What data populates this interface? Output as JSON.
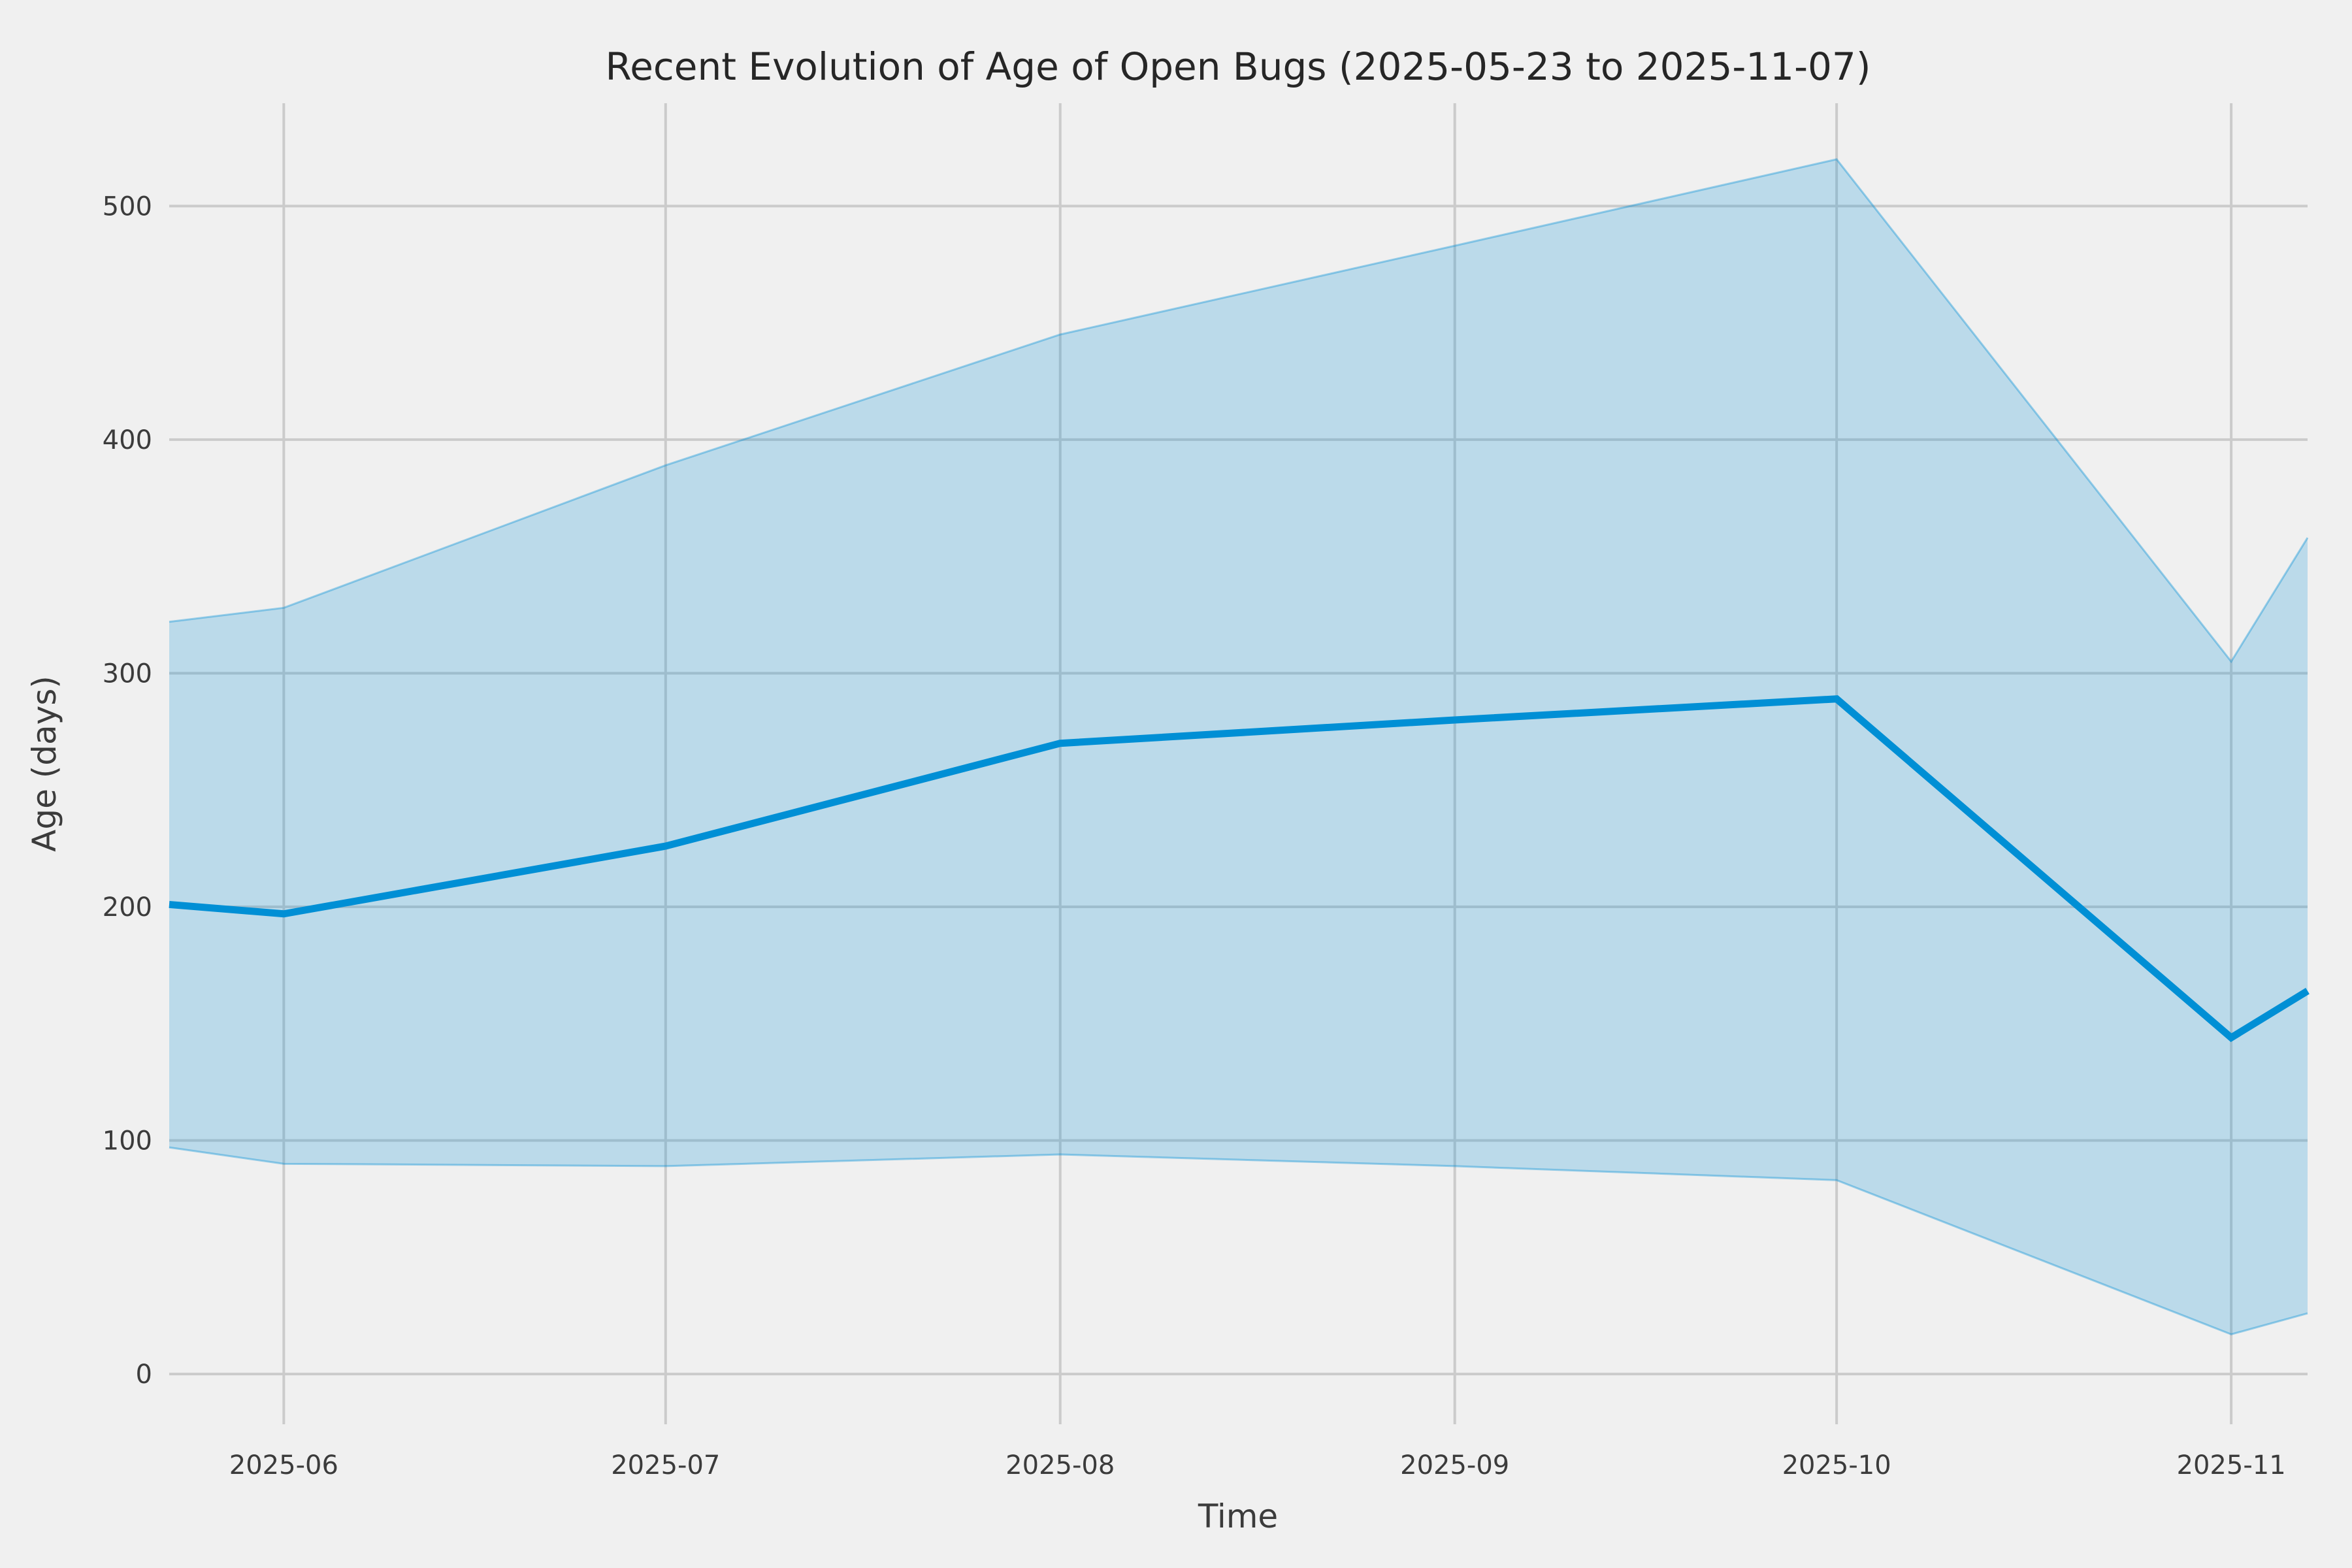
{
  "chart_data": {
    "type": "line",
    "title": "Recent Evolution of Age of Open Bugs (2025-05-23 to 2025-11-07)",
    "xlabel": "Time",
    "ylabel": "Age (days)",
    "x_dates": [
      "2025-05-23",
      "2025-06-01",
      "2025-07-01",
      "2025-08-01",
      "2025-09-01",
      "2025-10-01",
      "2025-11-01",
      "2025-11-07"
    ],
    "x_days_since_start": [
      0,
      9,
      39,
      70,
      101,
      131,
      162,
      168
    ],
    "series": [
      {
        "name": "mean-age-line",
        "role": "line",
        "values": [
          201,
          197,
          226,
          270,
          280,
          289,
          144,
          164
        ]
      },
      {
        "name": "band-upper",
        "role": "band-upper",
        "values": [
          322,
          328,
          389,
          445,
          483,
          520,
          305,
          358
        ]
      },
      {
        "name": "band-lower",
        "role": "band-lower",
        "values": [
          97,
          90,
          89,
          94,
          89,
          83,
          17,
          26
        ]
      }
    ],
    "x_ticks": [
      {
        "label": "2025-06",
        "day": 9
      },
      {
        "label": "2025-07",
        "day": 39
      },
      {
        "label": "2025-08",
        "day": 70
      },
      {
        "label": "2025-09",
        "day": 101
      },
      {
        "label": "2025-10",
        "day": 131
      },
      {
        "label": "2025-11",
        "day": 162
      }
    ],
    "y_ticks": [
      0,
      100,
      200,
      300,
      400,
      500
    ],
    "xlim_days": [
      0,
      168
    ],
    "ylim": [
      -21.5,
      544
    ],
    "grid": true,
    "legend": false
  },
  "styles": {
    "figure_background": "#f0f0f0",
    "grid_color": "#cbcbcb",
    "line_color": "#008fd5",
    "band_fill": "rgba(0,143,213,0.22)",
    "band_edge": "rgba(0,143,213,0.38)",
    "title_color": "#262626",
    "tick_color": "#3b3b3b",
    "label_color": "#3b3b3b"
  }
}
